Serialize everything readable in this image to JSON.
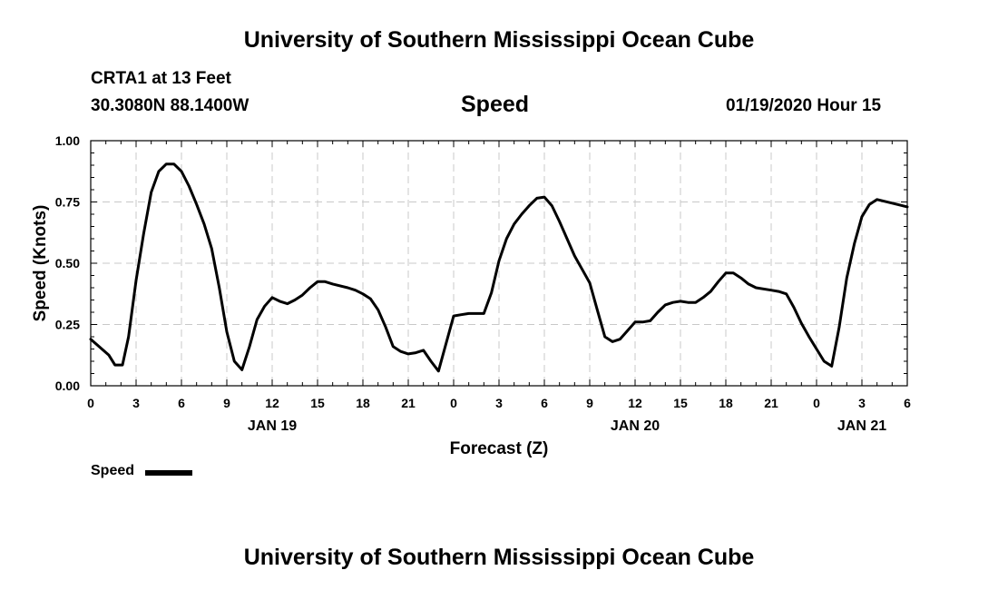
{
  "header": {
    "title": "University of Southern Mississippi Ocean Cube",
    "station": "CRTA1 at 13 Feet",
    "location": "30.3080N 88.1400W",
    "variable": "Speed",
    "issued": "01/19/2020 Hour 15"
  },
  "footer": {
    "title": "University of Southern Mississippi Ocean Cube"
  },
  "legend": {
    "label": "Speed"
  },
  "chart_data": {
    "type": "line",
    "title": "Speed",
    "xlabel": "Forecast (Z)",
    "ylabel": "Speed (Knots)",
    "ylim": [
      0,
      1
    ],
    "xlim": [
      0,
      54
    ],
    "x_unit": "hours since JAN 19 00Z",
    "yticks": [
      "0.00",
      "0.25",
      "0.50",
      "0.75",
      "1.00"
    ],
    "xticks": [
      {
        "x": 0,
        "label": "0"
      },
      {
        "x": 3,
        "label": "3"
      },
      {
        "x": 6,
        "label": "6"
      },
      {
        "x": 9,
        "label": "9"
      },
      {
        "x": 12,
        "label": "12"
      },
      {
        "x": 15,
        "label": "15"
      },
      {
        "x": 18,
        "label": "18"
      },
      {
        "x": 21,
        "label": "21"
      },
      {
        "x": 24,
        "label": "0"
      },
      {
        "x": 27,
        "label": "3"
      },
      {
        "x": 30,
        "label": "6"
      },
      {
        "x": 33,
        "label": "9"
      },
      {
        "x": 36,
        "label": "12"
      },
      {
        "x": 39,
        "label": "15"
      },
      {
        "x": 42,
        "label": "18"
      },
      {
        "x": 45,
        "label": "21"
      },
      {
        "x": 48,
        "label": "0"
      },
      {
        "x": 51,
        "label": "3"
      },
      {
        "x": 54,
        "label": "6"
      }
    ],
    "day_labels": [
      {
        "x": 12,
        "label": "JAN 19"
      },
      {
        "x": 36,
        "label": "JAN 20"
      },
      {
        "x": 51,
        "label": "JAN 21"
      }
    ],
    "grid": true,
    "series": [
      {
        "name": "Speed",
        "color": "#000000",
        "points": [
          [
            0,
            0.19
          ],
          [
            1.2,
            0.125
          ],
          [
            1.6,
            0.085
          ],
          [
            2.1,
            0.085
          ],
          [
            2.5,
            0.2
          ],
          [
            3,
            0.43
          ],
          [
            3.5,
            0.62
          ],
          [
            4,
            0.79
          ],
          [
            4.5,
            0.875
          ],
          [
            5,
            0.905
          ],
          [
            5.5,
            0.905
          ],
          [
            6,
            0.875
          ],
          [
            6.5,
            0.815
          ],
          [
            7,
            0.74
          ],
          [
            7.5,
            0.66
          ],
          [
            8,
            0.56
          ],
          [
            8.5,
            0.4
          ],
          [
            9,
            0.22
          ],
          [
            9.5,
            0.1
          ],
          [
            10,
            0.065
          ],
          [
            10.5,
            0.16
          ],
          [
            11,
            0.27
          ],
          [
            11.5,
            0.325
          ],
          [
            12,
            0.36
          ],
          [
            12.5,
            0.345
          ],
          [
            13,
            0.335
          ],
          [
            13.5,
            0.35
          ],
          [
            14,
            0.37
          ],
          [
            14.5,
            0.4
          ],
          [
            15,
            0.425
          ],
          [
            15.5,
            0.425
          ],
          [
            16,
            0.415
          ],
          [
            17,
            0.4
          ],
          [
            17.5,
            0.39
          ],
          [
            18,
            0.375
          ],
          [
            18.5,
            0.355
          ],
          [
            19,
            0.31
          ],
          [
            19.5,
            0.24
          ],
          [
            20,
            0.16
          ],
          [
            20.5,
            0.14
          ],
          [
            21,
            0.13
          ],
          [
            21.5,
            0.135
          ],
          [
            22,
            0.145
          ],
          [
            22.5,
            0.1
          ],
          [
            23,
            0.06
          ],
          [
            24,
            0.285
          ],
          [
            24.5,
            0.29
          ],
          [
            25,
            0.295
          ],
          [
            26,
            0.295
          ],
          [
            26.5,
            0.38
          ],
          [
            27,
            0.51
          ],
          [
            27.5,
            0.6
          ],
          [
            28,
            0.66
          ],
          [
            28.5,
            0.7
          ],
          [
            29,
            0.735
          ],
          [
            29.5,
            0.765
          ],
          [
            30,
            0.77
          ],
          [
            30.5,
            0.735
          ],
          [
            31,
            0.67
          ],
          [
            31.5,
            0.6
          ],
          [
            32,
            0.53
          ],
          [
            32.5,
            0.475
          ],
          [
            33,
            0.42
          ],
          [
            33.5,
            0.31
          ],
          [
            34,
            0.2
          ],
          [
            34.5,
            0.18
          ],
          [
            35,
            0.19
          ],
          [
            35.5,
            0.225
          ],
          [
            36,
            0.26
          ],
          [
            36.5,
            0.26
          ],
          [
            37,
            0.265
          ],
          [
            37.5,
            0.3
          ],
          [
            38,
            0.33
          ],
          [
            38.5,
            0.34
          ],
          [
            39,
            0.345
          ],
          [
            39.5,
            0.34
          ],
          [
            40,
            0.34
          ],
          [
            40.5,
            0.36
          ],
          [
            41,
            0.385
          ],
          [
            41.5,
            0.425
          ],
          [
            42,
            0.46
          ],
          [
            42.5,
            0.46
          ],
          [
            43,
            0.44
          ],
          [
            43.5,
            0.415
          ],
          [
            44,
            0.4
          ],
          [
            45,
            0.39
          ],
          [
            45.5,
            0.385
          ],
          [
            46,
            0.375
          ],
          [
            46.5,
            0.32
          ],
          [
            47,
            0.255
          ],
          [
            47.5,
            0.2
          ],
          [
            48,
            0.15
          ],
          [
            48.5,
            0.1
          ],
          [
            49,
            0.08
          ],
          [
            49.5,
            0.24
          ],
          [
            50,
            0.44
          ],
          [
            50.5,
            0.58
          ],
          [
            51,
            0.69
          ],
          [
            51.5,
            0.74
          ],
          [
            52,
            0.76
          ],
          [
            53,
            0.745
          ],
          [
            54,
            0.73
          ]
        ]
      }
    ]
  }
}
